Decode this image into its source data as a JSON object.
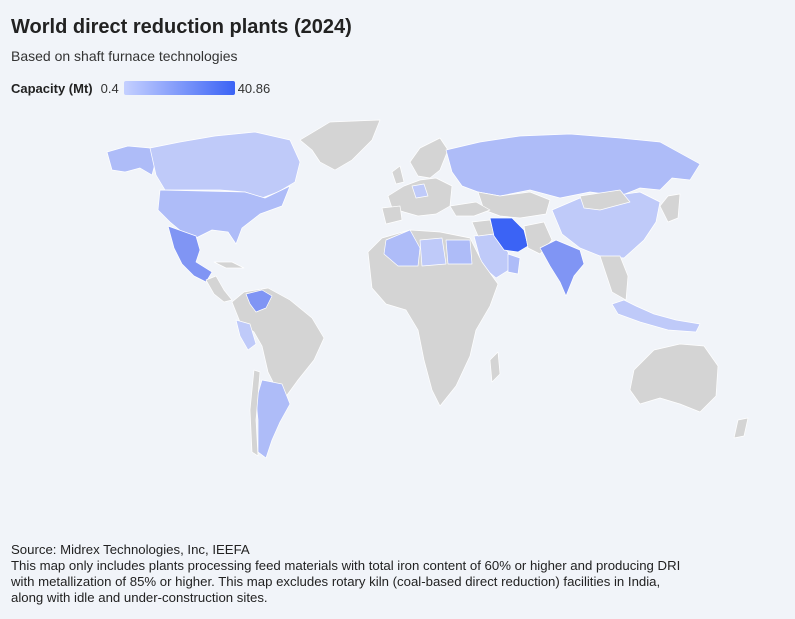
{
  "header": {
    "title": "World direct reduction plants (2024)",
    "subtitle": "Based on shaft furnace technologies"
  },
  "legend": {
    "label": "Capacity (Mt)",
    "min": "0.4",
    "max": "40.86",
    "color_low": "#c5d0ff",
    "color_high": "#3b63f5"
  },
  "map_colors": {
    "no_data": "#d4d4d4",
    "very_low": "#bfcaf9",
    "low": "#aebcf8",
    "mid": "#93a6f6",
    "high": "#8095f4",
    "max": "#3b63f5"
  },
  "footer": {
    "source": "Source: Midrex Technologies, Inc, IEEFA",
    "note_lines": [
      "This map only includes plants processing feed materials with total iron content of 60% or higher and producing DRI",
      "with metallization of 85% or higher. This map excludes rotary kiln (coal-based direct reduction) facilities in India,",
      "along with idle and under-construction sites."
    ]
  }
}
